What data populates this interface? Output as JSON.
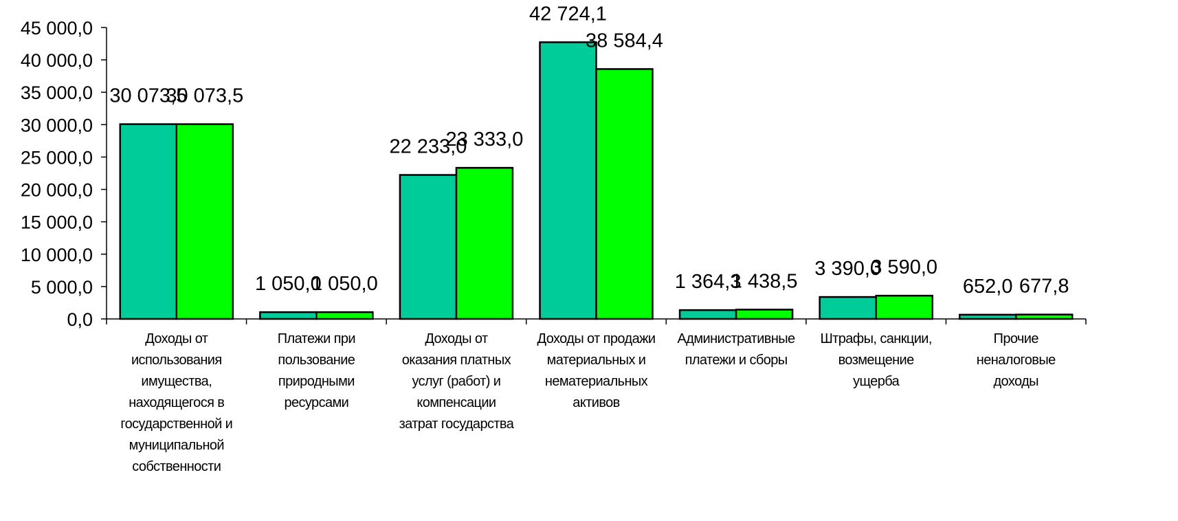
{
  "chart_data": {
    "type": "bar",
    "categories": [
      "Доходы от использования имущества, находящегося в государственной и муниципальной собственности",
      "Платежи при пользование природными ресурсами",
      "Доходы от оказания платных услуг (работ) и компенсации затрат государства",
      "Доходы от продажи материальных и нематериальных активов",
      "Административные платежи и сборы",
      "Штрафы, санкции, возмещение ущерба",
      "Прочие неналоговые доходы"
    ],
    "category_lines": [
      [
        "Доходы от",
        "использования",
        "имущества,",
        "находящегося в",
        "государственной и",
        "муниципальной",
        "собственности"
      ],
      [
        "Платежи при",
        "пользование",
        "природными",
        "ресурсами"
      ],
      [
        "Доходы от",
        "оказания платных",
        "услуг (работ) и",
        "компенсации",
        "затрат государства"
      ],
      [
        "Доходы от продажи",
        "материальных и",
        "нематериальных",
        "активов"
      ],
      [
        "Административные",
        "платежи и сборы"
      ],
      [
        "Штрафы, санкции,",
        "возмещение",
        "ущерба"
      ],
      [
        "Прочие",
        "неналоговые",
        "доходы"
      ]
    ],
    "series": [
      {
        "color": "#00CC99",
        "values": [
          30073.5,
          1050.0,
          22233.0,
          42724.1,
          1364.3,
          3390.0,
          652.0
        ],
        "labels": [
          "30 073,5",
          "1 050,0",
          "22 233,0",
          "42 724,1",
          "1 364,3",
          "3 390,0",
          "652,0"
        ]
      },
      {
        "color": "#00FF00",
        "values": [
          30073.5,
          1050.0,
          23333.0,
          38584.4,
          1438.5,
          3590.0,
          677.8
        ],
        "labels": [
          "30 073,5",
          "1 050,0",
          "23 333,0",
          "38 584,4",
          "1 438,5",
          "3 590,0",
          "677,8"
        ]
      }
    ],
    "y_ticks": [
      "0,0",
      "5 000,0",
      "10 000,0",
      "15 000,0",
      "20 000,0",
      "25 000,0",
      "30 000,0",
      "35 000,0",
      "40 000,0",
      "45 000,0"
    ],
    "ylim": [
      0,
      45000
    ],
    "grid": false,
    "legend": "none"
  }
}
